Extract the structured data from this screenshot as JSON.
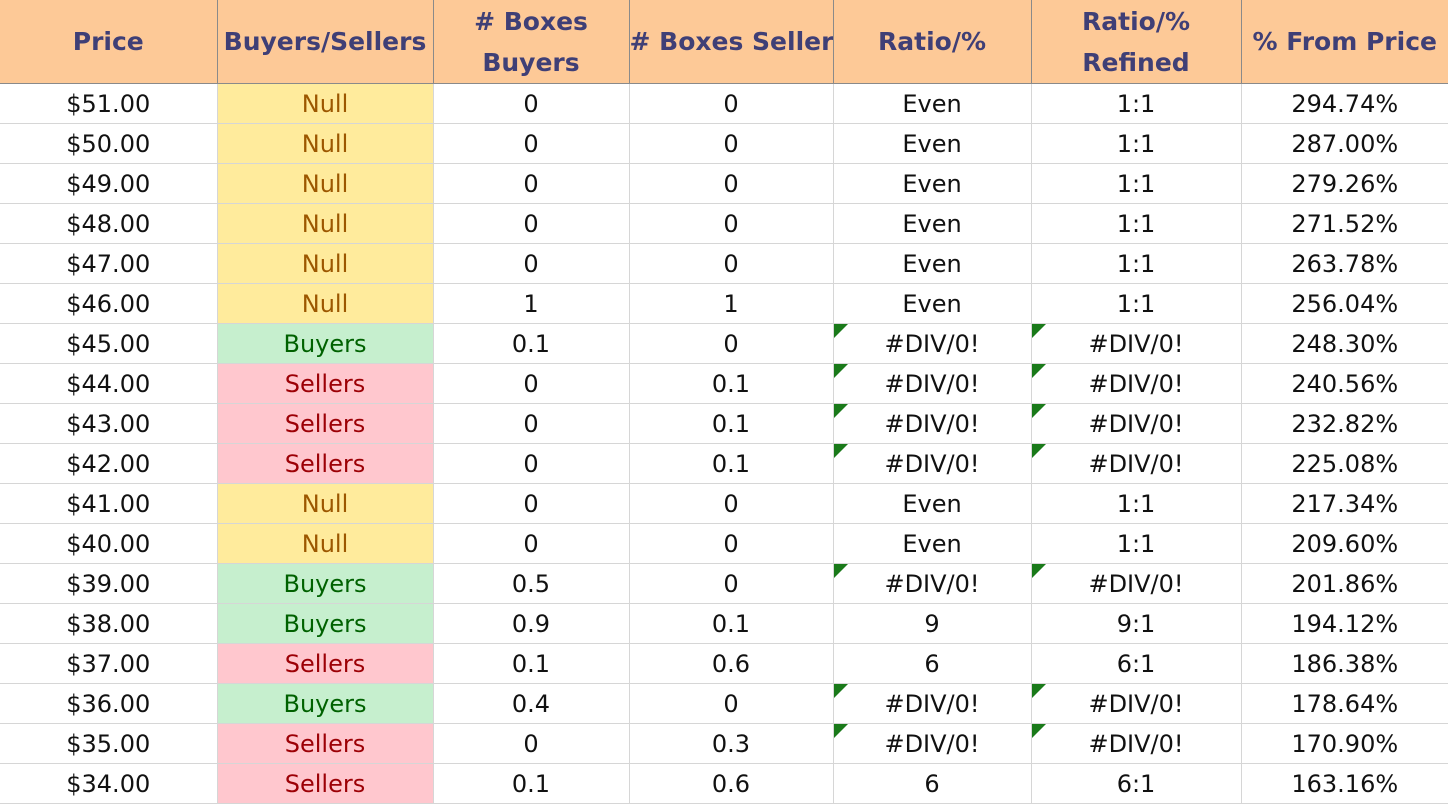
{
  "headers": [
    "Price",
    "Buyers/Sellers",
    "# Boxes Buyers",
    "# Boxes Sellers",
    "Ratio/%",
    "Ratio/% Refined",
    "% From Price"
  ],
  "rows": [
    [
      "$51.00",
      "Null",
      "0",
      "0",
      "Even",
      "1:1",
      "294.74%"
    ],
    [
      "$50.00",
      "Null",
      "0",
      "0",
      "Even",
      "1:1",
      "287.00%"
    ],
    [
      "$49.00",
      "Null",
      "0",
      "0",
      "Even",
      "1:1",
      "279.26%"
    ],
    [
      "$48.00",
      "Null",
      "0",
      "0",
      "Even",
      "1:1",
      "271.52%"
    ],
    [
      "$47.00",
      "Null",
      "0",
      "0",
      "Even",
      "1:1",
      "263.78%"
    ],
    [
      "$46.00",
      "Null",
      "1",
      "1",
      "Even",
      "1:1",
      "256.04%"
    ],
    [
      "$45.00",
      "Buyers",
      "0.1",
      "0",
      "#DIV/0!",
      "#DIV/0!",
      "248.30%"
    ],
    [
      "$44.00",
      "Sellers",
      "0",
      "0.1",
      "#DIV/0!",
      "#DIV/0!",
      "240.56%"
    ],
    [
      "$43.00",
      "Sellers",
      "0",
      "0.1",
      "#DIV/0!",
      "#DIV/0!",
      "232.82%"
    ],
    [
      "$42.00",
      "Sellers",
      "0",
      "0.1",
      "#DIV/0!",
      "#DIV/0!",
      "225.08%"
    ],
    [
      "$41.00",
      "Null",
      "0",
      "0",
      "Even",
      "1:1",
      "217.34%"
    ],
    [
      "$40.00",
      "Null",
      "0",
      "0",
      "Even",
      "1:1",
      "209.60%"
    ],
    [
      "$39.00",
      "Buyers",
      "0.5",
      "0",
      "#DIV/0!",
      "#DIV/0!",
      "201.86%"
    ],
    [
      "$38.00",
      "Buyers",
      "0.9",
      "0.1",
      "9",
      "9:1",
      "194.12%"
    ],
    [
      "$37.00",
      "Sellers",
      "0.1",
      "0.6",
      "6",
      "6:1",
      "186.38%"
    ],
    [
      "$36.00",
      "Buyers",
      "0.4",
      "0",
      "#DIV/0!",
      "#DIV/0!",
      "178.64%"
    ],
    [
      "$35.00",
      "Sellers",
      "0",
      "0.3",
      "#DIV/0!",
      "#DIV/0!",
      "170.90%"
    ],
    [
      "$34.00",
      "Sellers",
      "0.1",
      "0.6",
      "6",
      "6:1",
      "163.16%"
    ]
  ],
  "colors": {
    "header_bg": "#fdc997",
    "header_text": "#3f3f76",
    "null_bg": "#ffeb9c",
    "null_text": "#9c5700",
    "buyers_bg": "#c6efce",
    "buyers_text": "#006100",
    "sellers_bg": "#ffc7ce",
    "sellers_text": "#9c0006",
    "error_flag": "#1a7a1a"
  }
}
